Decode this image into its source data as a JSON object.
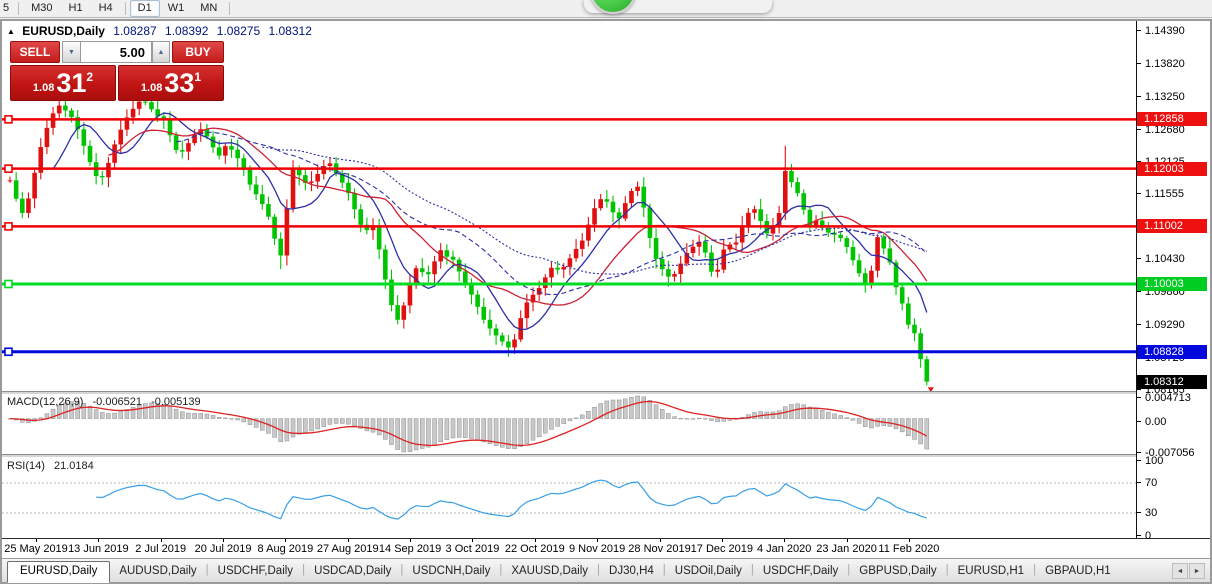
{
  "toolbar": {
    "partial_item": "5",
    "group1": [
      "M30",
      "H1",
      "H4"
    ],
    "group2": [
      "D1",
      "W1",
      "MN"
    ],
    "active": "D1"
  },
  "header": {
    "collapse_icon": "▲",
    "symbol": "EURUSD,Daily",
    "open": "1.08287",
    "high": "1.08392",
    "low": "1.08275",
    "close": "1.08312"
  },
  "trade_panel": {
    "sell_label": "SELL",
    "buy_label": "BUY",
    "volume": "5.00",
    "spin_down": "▼",
    "spin_up": "▲",
    "bid": {
      "small": "1.08",
      "big": "31",
      "sup": "2"
    },
    "ask": {
      "small": "1.08",
      "big": "33",
      "sup": "1"
    }
  },
  "price_axis": {
    "ticks": [
      {
        "label": "1.14390",
        "price": 1.1439
      },
      {
        "label": "1.13820",
        "price": 1.1382
      },
      {
        "label": "1.13250",
        "price": 1.1325
      },
      {
        "label": "1.12680",
        "price": 1.1268
      },
      {
        "label": "1.12125",
        "price": 1.12125
      },
      {
        "label": "1.11555",
        "price": 1.11555
      },
      {
        "label": "1.10430",
        "price": 1.1043
      },
      {
        "label": "1.09860",
        "price": 1.0986
      },
      {
        "label": "1.09290",
        "price": 1.0929
      },
      {
        "label": "1.08720",
        "price": 1.0872
      },
      {
        "label": "1.08165",
        "price": 1.08165
      }
    ],
    "tags": [
      {
        "label": "1.12858",
        "price": 1.12858,
        "bg": "#ee0f0f"
      },
      {
        "label": "1.12003",
        "price": 1.12003,
        "bg": "#ee0f0f"
      },
      {
        "label": "1.11002",
        "price": 1.11002,
        "bg": "#ee0f0f"
      },
      {
        "label": "1.10003",
        "price": 1.10003,
        "bg": "#00cc22"
      },
      {
        "label": "1.08828",
        "price": 1.08828,
        "bg": "#0008dd"
      },
      {
        "label": "1.08312",
        "price": 1.08312,
        "bg": "#000000"
      }
    ]
  },
  "macd_panel": {
    "title": "MACD(12,26,9)",
    "value1": "-0.006521",
    "value2": "-0.005139",
    "axis_top": "0.004713",
    "axis_zero": "0.00",
    "axis_bottom": "-0.007056"
  },
  "rsi_panel": {
    "title": "RSI(14)",
    "value": "21.0184",
    "axis": [
      "100",
      "70",
      "30",
      "0"
    ]
  },
  "date_axis": {
    "labels": [
      "25 May 2019",
      "13 Jun 2019",
      "2 Jul 2019",
      "20 Jul 2019",
      "8 Aug 2019",
      "27 Aug 2019",
      "14 Sep 2019",
      "3 Oct 2019",
      "22 Oct 2019",
      "9 Nov 2019",
      "28 Nov 2019",
      "17 Dec 2019",
      "4 Jan 2020",
      "23 Jan 2020",
      "11 Feb 2020"
    ]
  },
  "tabs": {
    "active": "EURUSD,Daily",
    "items": [
      "EURUSD,Daily",
      "AUDUSD,Daily",
      "USDCHF,Daily",
      "USDCAD,Daily",
      "USDCNH,Daily",
      "XAUUSD,Daily",
      "DJ30,H4",
      "USDOil,Daily",
      "USDCHF,Daily",
      "GBPUSD,Daily",
      "EURUSD,H1",
      "GBPAUD,H1"
    ],
    "scroll_left": "◄",
    "scroll_right": "►"
  },
  "chart_data": {
    "type": "candlestick",
    "symbol": "EURUSD",
    "timeframe": "Daily",
    "title_ohlc": {
      "open": 1.08287,
      "high": 1.08392,
      "low": 1.08275,
      "close": 1.08312
    },
    "bid": 1.08312,
    "ask": 1.08331,
    "volume_lots": 5.0,
    "price_axis_top": 1.1439,
    "price_axis_bottom": 1.08165,
    "x_range": [
      "25 May 2019",
      "11 Feb 2020"
    ],
    "num_candles": 150,
    "bull_color": "#e01010",
    "bear_color": "#00c400",
    "close_path": [
      [
        0.0,
        1.118
      ],
      [
        0.006,
        1.1152
      ],
      [
        0.012,
        1.112
      ],
      [
        0.018,
        1.1135
      ],
      [
        0.025,
        1.118
      ],
      [
        0.032,
        1.123
      ],
      [
        0.04,
        1.127
      ],
      [
        0.048,
        1.13
      ],
      [
        0.055,
        1.1312
      ],
      [
        0.062,
        1.1298
      ],
      [
        0.07,
        1.1285
      ],
      [
        0.077,
        1.1255
      ],
      [
        0.084,
        1.1225
      ],
      [
        0.09,
        1.12
      ],
      [
        0.097,
        1.1178
      ],
      [
        0.104,
        1.1192
      ],
      [
        0.111,
        1.123
      ],
      [
        0.119,
        1.1262
      ],
      [
        0.127,
        1.1288
      ],
      [
        0.136,
        1.1308
      ],
      [
        0.144,
        1.1322
      ],
      [
        0.152,
        1.1308
      ],
      [
        0.16,
        1.1292
      ],
      [
        0.168,
        1.1285
      ],
      [
        0.176,
        1.1252
      ],
      [
        0.184,
        1.1222
      ],
      [
        0.192,
        1.1238
      ],
      [
        0.2,
        1.1258
      ],
      [
        0.209,
        1.127
      ],
      [
        0.218,
        1.1248
      ],
      [
        0.227,
        1.122
      ],
      [
        0.236,
        1.1242
      ],
      [
        0.245,
        1.1228
      ],
      [
        0.254,
        1.1202
      ],
      [
        0.263,
        1.1168
      ],
      [
        0.272,
        1.1148
      ],
      [
        0.281,
        1.1122
      ],
      [
        0.288,
        1.1082
      ],
      [
        0.295,
        1.1046
      ],
      [
        0.301,
        1.112
      ],
      [
        0.308,
        1.1202
      ],
      [
        0.316,
        1.1188
      ],
      [
        0.324,
        1.1172
      ],
      [
        0.332,
        1.1182
      ],
      [
        0.34,
        1.1202
      ],
      [
        0.348,
        1.1212
      ],
      [
        0.356,
        1.1192
      ],
      [
        0.364,
        1.1172
      ],
      [
        0.372,
        1.115
      ],
      [
        0.38,
        1.1108
      ],
      [
        0.388,
        1.1092
      ],
      [
        0.396,
        1.1102
      ],
      [
        0.404,
        1.1052
      ],
      [
        0.411,
        1.0995
      ],
      [
        0.418,
        1.0952
      ],
      [
        0.425,
        1.0932
      ],
      [
        0.432,
        1.098
      ],
      [
        0.439,
        1.1018
      ],
      [
        0.446,
        1.1035
      ],
      [
        0.453,
        1.1008
      ],
      [
        0.461,
        1.103
      ],
      [
        0.468,
        1.1062
      ],
      [
        0.476,
        1.1048
      ],
      [
        0.484,
        1.1042
      ],
      [
        0.492,
        1.1015
      ],
      [
        0.5,
        1.0992
      ],
      [
        0.508,
        1.0968
      ],
      [
        0.516,
        1.094
      ],
      [
        0.524,
        1.0922
      ],
      [
        0.532,
        1.0908
      ],
      [
        0.54,
        1.0896
      ],
      [
        0.547,
        1.0885
      ],
      [
        0.554,
        1.0925
      ],
      [
        0.561,
        1.0962
      ],
      [
        0.568,
        1.0978
      ],
      [
        0.576,
        1.099
      ],
      [
        0.584,
        1.1012
      ],
      [
        0.592,
        1.1032
      ],
      [
        0.6,
        1.1022
      ],
      [
        0.608,
        1.1038
      ],
      [
        0.616,
        1.1058
      ],
      [
        0.624,
        1.1075
      ],
      [
        0.632,
        1.1108
      ],
      [
        0.64,
        1.1142
      ],
      [
        0.648,
        1.1152
      ],
      [
        0.656,
        1.1128
      ],
      [
        0.664,
        1.1112
      ],
      [
        0.671,
        1.114
      ],
      [
        0.678,
        1.1162
      ],
      [
        0.684,
        1.1172
      ],
      [
        0.691,
        1.1135
      ],
      [
        0.698,
        1.108
      ],
      [
        0.705,
        1.1042
      ],
      [
        0.713,
        1.1022
      ],
      [
        0.721,
        1.1008
      ],
      [
        0.729,
        1.1028
      ],
      [
        0.737,
        1.1052
      ],
      [
        0.745,
        1.1065
      ],
      [
        0.753,
        1.1075
      ],
      [
        0.761,
        1.1045
      ],
      [
        0.768,
        1.1005
      ],
      [
        0.775,
        1.1042
      ],
      [
        0.782,
        1.1078
      ],
      [
        0.789,
        1.1058
      ],
      [
        0.796,
        1.1092
      ],
      [
        0.803,
        1.1118
      ],
      [
        0.81,
        1.1135
      ],
      [
        0.817,
        1.1118
      ],
      [
        0.824,
        1.1085
      ],
      [
        0.831,
        1.1098
      ],
      [
        0.838,
        1.1112
      ],
      [
        0.845,
        1.1198
      ],
      [
        0.852,
        1.1178
      ],
      [
        0.859,
        1.1158
      ],
      [
        0.866,
        1.1128
      ],
      [
        0.873,
        1.1098
      ],
      [
        0.88,
        1.1112
      ],
      [
        0.887,
        1.1095
      ],
      [
        0.894,
        1.1088
      ],
      [
        0.901,
        1.1085
      ],
      [
        0.908,
        1.1078
      ],
      [
        0.915,
        1.1058
      ],
      [
        0.922,
        1.1032
      ],
      [
        0.929,
        1.101
      ],
      [
        0.935,
        1.0995
      ],
      [
        0.941,
        1.1032
      ],
      [
        0.947,
        1.1088
      ],
      [
        0.953,
        1.1062
      ],
      [
        0.959,
        1.1043
      ],
      [
        0.965,
        1.1
      ],
      [
        0.971,
        1.0978
      ],
      [
        0.977,
        1.0946
      ],
      [
        0.983,
        1.0912
      ],
      [
        0.988,
        1.0916
      ],
      [
        0.993,
        1.0872
      ],
      [
        0.997,
        1.0843
      ],
      [
        1.0,
        1.0831
      ]
    ],
    "wick_overrides": [
      {
        "f": 0.845,
        "high": 1.124
      },
      {
        "f": 0.547,
        "low": 1.0879
      },
      {
        "f": 0.295,
        "low": 1.1026
      }
    ],
    "hlines": [
      {
        "price": 1.12858,
        "color": "#f20000",
        "width": 2.5
      },
      {
        "price": 1.12003,
        "color": "#f20000",
        "width": 2.5
      },
      {
        "price": 1.11002,
        "color": "#f20000",
        "width": 2.5
      },
      {
        "price": 1.10003,
        "color": "#00dd22",
        "width": 3
      },
      {
        "price": 1.08828,
        "color": "#0008dd",
        "width": 3
      }
    ],
    "moving_averages": [
      {
        "period": 8,
        "color": "#2e2ea8",
        "dash": ""
      },
      {
        "period": 17,
        "color": "#cc2233",
        "dash": ""
      },
      {
        "period": 28,
        "color": "#2e2ea8",
        "dash": "5,3"
      },
      {
        "period": 42,
        "color": "#2e2ea8",
        "dash": "2,2"
      }
    ],
    "macd": {
      "fast": 12,
      "slow": 26,
      "signal_period": 9,
      "current": -0.006521,
      "current_signal": -0.005139,
      "hist_color": "#c9c9c9",
      "hist_stroke": "#8f8f8f",
      "signal_color": "#dd2222",
      "axis_max": 0.004713,
      "axis_min": -0.007056
    },
    "rsi": {
      "period": 14,
      "current": 21.0184,
      "color": "#38a0e8",
      "levels": [
        70,
        30
      ],
      "range": [
        0,
        100
      ]
    },
    "last_marker": {
      "type": "sell-arrow",
      "color": "#e81212"
    }
  }
}
